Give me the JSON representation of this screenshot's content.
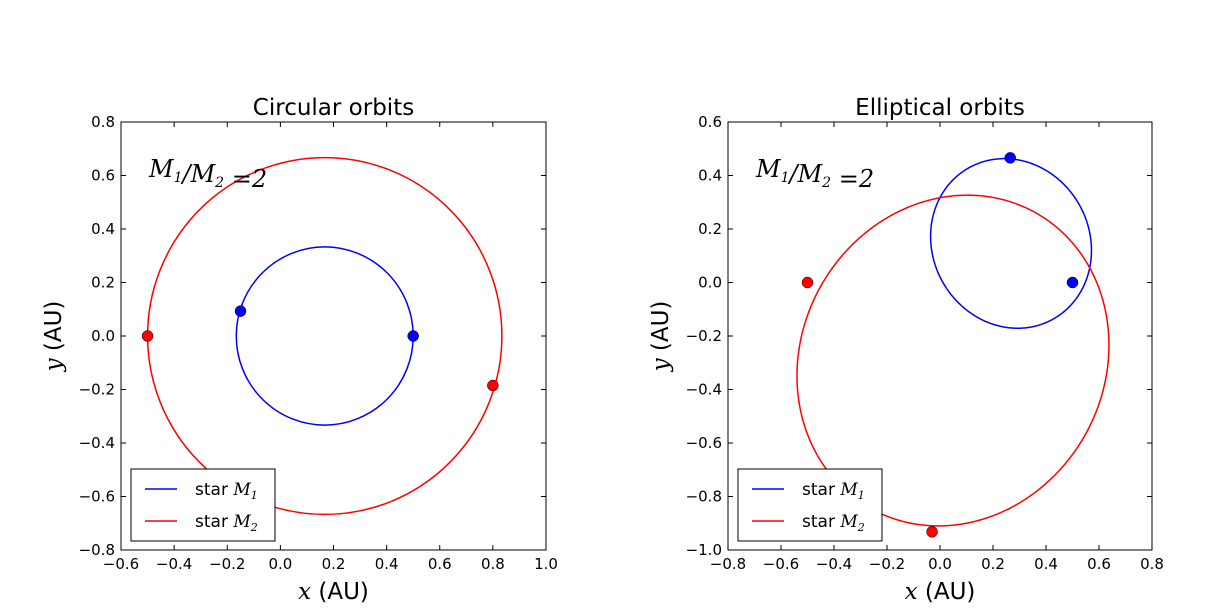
{
  "chart_data": [
    {
      "type": "line",
      "title": "Circular orbits",
      "xlabel": "(AU)",
      "xlabel_var": "x",
      "ylabel": "(AU)",
      "ylabel_var": "y",
      "xlim": [
        -0.6,
        1.0
      ],
      "ylim": [
        -0.8,
        0.8
      ],
      "xticks": [
        -0.6,
        -0.4,
        -0.2,
        0.0,
        0.2,
        0.4,
        0.6,
        0.8,
        1.0
      ],
      "xtick_labels": [
        "−0.6",
        "−0.4",
        "−0.2",
        "0.0",
        "0.2",
        "0.4",
        "0.6",
        "0.8",
        "1.0"
      ],
      "yticks": [
        -0.8,
        -0.6,
        -0.4,
        -0.2,
        0.0,
        0.2,
        0.4,
        0.6,
        0.8
      ],
      "ytick_labels": [
        "−0.8",
        "−0.6",
        "−0.4",
        "−0.2",
        "0.0",
        "0.2",
        "0.4",
        "0.6",
        "0.8"
      ],
      "annotation": "M1/M2 = 2",
      "legend_position": "lower-left",
      "series": [
        {
          "name": "star M1",
          "color": "#0000ff",
          "orbit": {
            "shape": "circle",
            "center": [
              0.167,
              0.0
            ],
            "radius": 0.333
          },
          "markers": [
            [
              0.5,
              0.0
            ],
            [
              -0.15,
              0.093
            ]
          ]
        },
        {
          "name": "star M2",
          "color": "#ff0000",
          "orbit": {
            "shape": "circle",
            "center": [
              0.167,
              0.0
            ],
            "radius": 0.667
          },
          "markers": [
            [
              -0.5,
              0.0
            ],
            [
              0.8,
              -0.185
            ]
          ]
        }
      ]
    },
    {
      "type": "line",
      "title": "Elliptical orbits",
      "xlabel": "(AU)",
      "xlabel_var": "x",
      "ylabel": "(AU)",
      "ylabel_var": "y",
      "xlim": [
        -0.8,
        0.8
      ],
      "ylim": [
        -1.0,
        0.6
      ],
      "xticks": [
        -0.8,
        -0.6,
        -0.4,
        -0.2,
        0.0,
        0.2,
        0.4,
        0.6,
        0.8
      ],
      "xtick_labels": [
        "−0.8",
        "−0.6",
        "−0.4",
        "−0.2",
        "0.0",
        "0.2",
        "0.4",
        "0.6",
        "0.8"
      ],
      "yticks": [
        -1.0,
        -0.8,
        -0.6,
        -0.4,
        -0.2,
        0.0,
        0.2,
        0.4,
        0.6
      ],
      "ytick_labels": [
        "−1.0",
        "−0.8",
        "−0.6",
        "−0.4",
        "−0.2",
        "0.0",
        "0.2",
        "0.4",
        "0.6"
      ],
      "annotation": "M1/M2 = 2",
      "legend_position": "lower-left",
      "series": [
        {
          "name": "star M1",
          "color": "#0000ff",
          "orbit": {
            "shape": "ellipse",
            "center": [
              0.268,
              0.146
            ],
            "semi_axes": [
              0.2955,
              0.3245
            ],
            "rotation_deg": 31.1
          },
          "markers": [
            [
              0.5,
              0.0
            ],
            [
              0.265,
              0.466
            ]
          ]
        },
        {
          "name": "star M2",
          "color": "#ff0000",
          "orbit": {
            "shape": "ellipse",
            "center": [
              0.0489,
              -0.2917
            ],
            "semi_axes": [
              0.571,
              0.6345
            ],
            "rotation_deg": -31.1
          },
          "markers": [
            [
              -0.5,
              0.0
            ],
            [
              -0.03,
              -0.932
            ]
          ]
        }
      ]
    }
  ]
}
